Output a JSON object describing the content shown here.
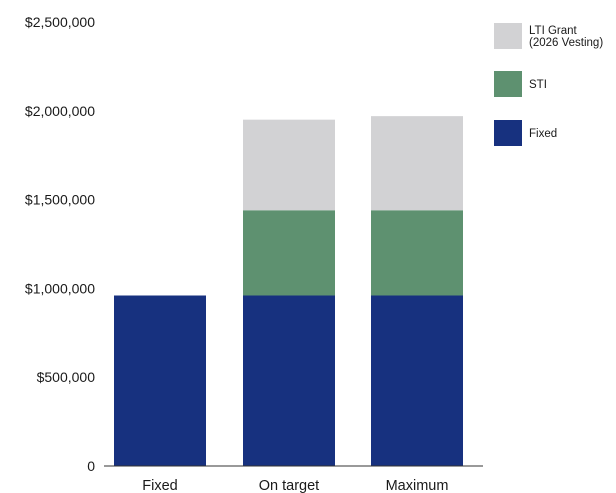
{
  "chart_data": {
    "type": "bar",
    "stacked": true,
    "categories": [
      "Fixed",
      "On target",
      "Maximum"
    ],
    "series": [
      {
        "name": "Fixed",
        "color": "#17317f",
        "values": [
          960000,
          960000,
          960000
        ]
      },
      {
        "name": "STI",
        "color": "#5e9170",
        "values": [
          0,
          480000,
          480000
        ]
      },
      {
        "name": "LTI Grant (2026 Vesting)",
        "color": "#d2d2d4",
        "values": [
          0,
          510000,
          530000
        ]
      }
    ],
    "ylim": [
      0,
      2500000
    ],
    "yticks": [
      0,
      500000,
      1000000,
      1500000,
      2000000,
      2500000
    ],
    "ytick_labels": [
      "0",
      "$500,000",
      "$1,000,000",
      "$1,500,000",
      "$2,000,000",
      "$2,500,000"
    ],
    "legend": {
      "placement": "top-right",
      "entries": [
        {
          "series": "LTI Grant (2026 Vesting)",
          "lines": [
            "LTI Grant",
            "(2026 Vesting)"
          ]
        },
        {
          "series": "STI",
          "lines": [
            "STI"
          ]
        },
        {
          "series": "Fixed",
          "lines": [
            "Fixed"
          ]
        }
      ]
    },
    "grid": false,
    "title": "",
    "xlabel": "",
    "ylabel": ""
  }
}
